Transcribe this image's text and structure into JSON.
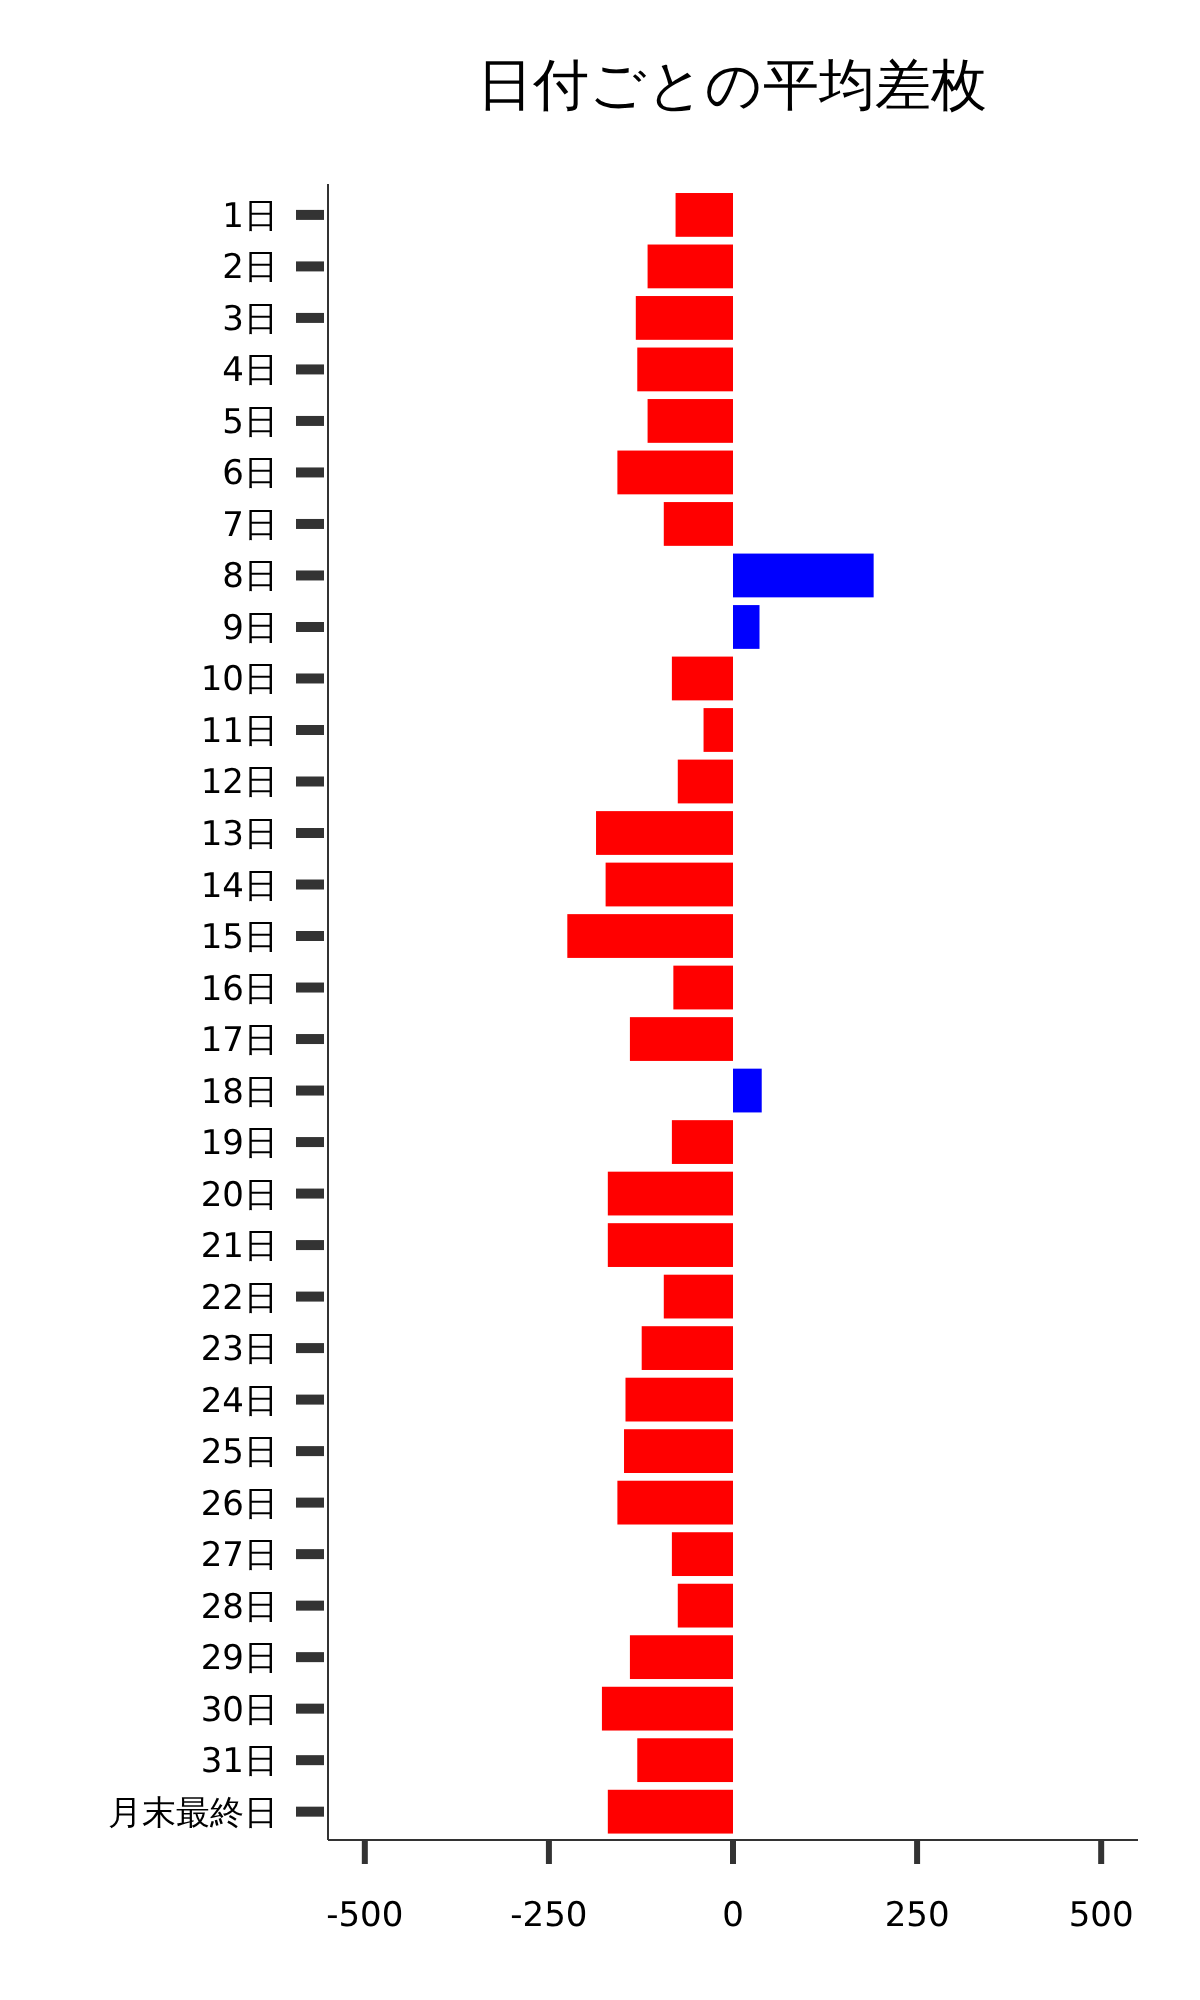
{
  "chart_data": {
    "type": "bar",
    "orientation": "horizontal",
    "title": "日付ごとの平均差枚",
    "categories": [
      "1日",
      "2日",
      "3日",
      "4日",
      "5日",
      "6日",
      "7日",
      "8日",
      "9日",
      "10日",
      "11日",
      "12日",
      "13日",
      "14日",
      "15日",
      "16日",
      "17日",
      "18日",
      "19日",
      "20日",
      "21日",
      "22日",
      "23日",
      "24日",
      "25日",
      "26日",
      "27日",
      "28日",
      "29日",
      "30日",
      "31日",
      "月末最終日"
    ],
    "values": [
      -78,
      -116,
      -132,
      -130,
      -116,
      -157,
      -94,
      191,
      36,
      -83,
      -40,
      -75,
      -186,
      -173,
      -225,
      -81,
      -140,
      39,
      -83,
      -170,
      -170,
      -94,
      -124,
      -146,
      -148,
      -157,
      -83,
      -75,
      -140,
      -178,
      -130,
      -170
    ],
    "colors": [
      "#ff0000",
      "#ff0000",
      "#ff0000",
      "#ff0000",
      "#ff0000",
      "#ff0000",
      "#ff0000",
      "#0000ff",
      "#0000ff",
      "#ff0000",
      "#ff0000",
      "#ff0000",
      "#ff0000",
      "#ff0000",
      "#ff0000",
      "#ff0000",
      "#ff0000",
      "#0000ff",
      "#ff0000",
      "#ff0000",
      "#ff0000",
      "#ff0000",
      "#ff0000",
      "#ff0000",
      "#ff0000",
      "#ff0000",
      "#ff0000",
      "#ff0000",
      "#ff0000",
      "#ff0000",
      "#ff0000",
      "#ff0000"
    ],
    "xlim": [
      -550,
      550
    ],
    "xticks": [
      -500,
      -250,
      0,
      250,
      500
    ],
    "grid": false
  }
}
